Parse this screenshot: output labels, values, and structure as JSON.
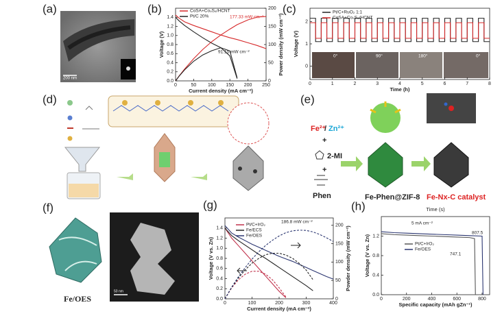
{
  "panel_labels": [
    "(a)",
    "(b)",
    "(c)",
    "(d)",
    "(e)",
    "(f)",
    "(g)",
    "(h)"
  ],
  "scale_bars": [
    "200 nm",
    "50 nm"
  ],
  "scheme_e": {
    "ion_fe": "Fe²⁺",
    "slash": "/",
    "ion_zn": "Zn²⁺",
    "plus": "+",
    "ligand1": "2-MI",
    "ligand2": "Phen",
    "product1": "Fe-Phen@ZIF-8",
    "product2": "Fe-Nx-C catalyst"
  },
  "f_caption": "Fe/OES",
  "chart_data": [
    {
      "type": "line",
      "xlabel": "Current density (mA cm⁻²)",
      "ylabel": "Voltage (V)",
      "y2label": "Power density (mW cm⁻²)",
      "x": [
        0,
        10,
        25,
        50,
        75,
        100,
        125,
        150,
        170,
        200,
        225,
        250
      ],
      "xlim": [
        0,
        250
      ],
      "xticks": [
        0,
        50,
        100,
        150,
        200,
        250
      ],
      "ylim": [
        0,
        1.6
      ],
      "yticks": [
        {
          "value": 0,
          "label": "0.0"
        },
        0.2,
        0.4,
        0.6,
        0.8,
        {
          "value": 1,
          "label": "1.0"
        },
        1.2,
        1.4
      ],
      "y2lim": [
        0,
        200
      ],
      "y2ticks": [
        0,
        50,
        100,
        150,
        200
      ],
      "series": [
        {
          "name": "CoSA+Co₉S₈/HCNT",
          "color": "#d62728",
          "values": [
            1.45,
            1.38,
            1.3,
            1.22,
            1.15,
            1.08,
            1.01,
            0.95,
            0.91,
            0.84,
            0.78,
            0.71
          ]
        },
        {
          "name": "Pt/C 20%",
          "color": "#222222",
          "values": [
            1.4,
            1.32,
            1.22,
            1.08,
            0.95,
            0.83,
            0.73,
            0.55,
            0.05,
            null,
            null,
            null
          ]
        },
        {
          "name": "CoSA+Co₉S₈/HCNT",
          "color": "#d62728",
          "axis": "y2",
          "values": [
            0,
            13.8,
            32.5,
            61,
            86.3,
            108,
            126.3,
            142.5,
            154.7,
            168,
            175.5,
            177.3
          ]
        },
        {
          "name": "Pt/C 20%",
          "color": "#222222",
          "axis": "y2",
          "values": [
            0,
            13.2,
            30.5,
            54,
            71.3,
            83,
            91.2,
            82.5,
            8.5,
            null,
            null,
            null
          ]
        }
      ],
      "annotations": [
        "177.33 mW cm⁻²",
        "91.15 mW cm⁻²"
      ]
    },
    {
      "type": "line",
      "xlabel": "Time (h)",
      "ylabel": "Voltage (V)",
      "x": [
        0,
        0.25,
        0.25,
        0.5,
        0.5,
        0.75,
        0.75,
        1,
        1,
        1.25,
        1.25,
        1.5,
        1.5,
        1.75,
        1.75,
        2,
        2,
        2.25,
        2.25,
        2.5,
        2.5,
        2.75,
        2.75,
        3,
        3,
        3.25,
        3.25,
        3.5,
        3.5,
        3.75,
        3.75,
        4,
        4,
        4.25,
        4.25,
        4.5,
        4.5,
        4.75,
        4.75,
        5,
        5,
        5.25,
        5.25,
        5.5,
        5.5,
        5.75,
        5.75,
        6,
        6,
        6.25,
        6.25,
        6.5,
        6.5,
        6.75,
        6.75,
        7,
        7,
        7.25,
        7.25,
        7.5,
        7.5,
        7.75,
        7.75,
        8
      ],
      "xlim": [
        0,
        8
      ],
      "xticks": [
        0,
        1,
        2,
        3,
        4,
        5,
        6,
        7,
        8
      ],
      "ylim": [
        -0.6,
        2.6
      ],
      "yticks": [
        0,
        1,
        2
      ],
      "series": [
        {
          "name": "Pt/C+RuO₂ 1:1",
          "color": "#222222",
          "values": [
            2.15,
            2.15,
            1.1,
            1.1,
            2.15,
            2.15,
            1.1,
            1.1,
            2.15,
            2.15,
            1.1,
            1.1,
            2.15,
            2.15,
            1.1,
            1.1,
            2.15,
            2.15,
            1.1,
            1.1,
            2.15,
            2.15,
            1.1,
            1.1,
            2.15,
            2.15,
            1.1,
            1.1,
            2.15,
            2.15,
            1.1,
            1.1,
            2.15,
            2.15,
            1.1,
            1.1,
            2.15,
            2.15,
            1.1,
            1.1,
            2.15,
            2.15,
            1.1,
            1.1,
            2.15,
            2.15,
            1.1,
            1.1,
            2.15,
            2.15,
            1.1,
            1.1,
            2.15,
            2.15,
            1.1,
            1.1,
            2.15,
            2.15,
            1.1,
            1.1,
            2.15,
            2.15,
            1.1,
            1.1
          ]
        },
        {
          "name": "CoSA+Co₉S₈/HCNT",
          "color": "#d62728",
          "values": [
            1.95,
            1.95,
            1.25,
            1.25,
            1.95,
            1.95,
            1.25,
            1.25,
            1.95,
            1.95,
            1.25,
            1.25,
            1.95,
            1.95,
            1.25,
            1.25,
            1.95,
            1.95,
            1.25,
            1.25,
            1.95,
            1.95,
            1.25,
            1.25,
            1.95,
            1.95,
            1.25,
            1.25,
            1.95,
            1.95,
            1.25,
            1.25,
            1.95,
            1.95,
            1.25,
            1.25,
            1.95,
            1.95,
            1.25,
            1.25,
            1.95,
            1.95,
            1.25,
            1.25,
            1.95,
            1.95,
            1.25,
            1.25,
            1.95,
            1.95,
            1.25,
            1.25,
            1.95,
            1.95,
            1.25,
            1.25,
            1.95,
            1.95,
            1.25,
            1.25,
            1.95,
            1.95,
            1.25,
            1.25
          ]
        }
      ],
      "annotations": [
        "0°",
        "90°",
        "180°",
        "0°"
      ]
    },
    {
      "type": "line",
      "xlabel": "Current density (mA cm⁻²)",
      "ylabel": "Voltage (V vs. Zn)",
      "y2label": "Powder density (mW cm⁻²)",
      "x": [
        0,
        25,
        50,
        75,
        100,
        125,
        150,
        175,
        200,
        225,
        250,
        275,
        300,
        325,
        350,
        375,
        400
      ],
      "xlim": [
        0,
        400
      ],
      "xticks": [
        0,
        100,
        200,
        300,
        400
      ],
      "ylim": [
        0,
        1.6
      ],
      "yticks": [
        {
          "value": 0,
          "label": "0.0"
        },
        0.2,
        0.4,
        0.6,
        0.8,
        {
          "value": 1,
          "label": "1.0"
        },
        1.2,
        1.4
      ],
      "y2lim": [
        0,
        220
      ],
      "y2ticks": [
        0,
        50,
        100,
        150,
        200
      ],
      "series": [
        {
          "name": "Pt/C+IrO₂",
          "color": "#c0304a",
          "values": [
            1.4,
            1.2,
            1.05,
            0.9,
            0.75,
            0.6,
            0.45,
            0.3,
            0.15,
            0.02,
            null,
            null,
            null,
            null,
            null,
            null,
            null
          ]
        },
        {
          "name": "Fe/ECS",
          "color": "#222222",
          "values": [
            1.4,
            1.25,
            1.15,
            1.06,
            0.97,
            0.88,
            0.8,
            0.71,
            0.62,
            0.53,
            0.44,
            0.35,
            0.26,
            0.16,
            null,
            null,
            null
          ]
        },
        {
          "name": "Fe/OES",
          "color": "#2a3570",
          "values": [
            1.45,
            1.3,
            1.22,
            1.15,
            1.08,
            1.02,
            0.96,
            0.9,
            0.84,
            0.79,
            0.74,
            0.68,
            0.62,
            0.56,
            0.5,
            0.44,
            0.39
          ]
        },
        {
          "name": "Pt/C+IrO₂",
          "color": "#c0304a",
          "axis": "y2",
          "dashed": true,
          "values": [
            0,
            30,
            52,
            67,
            75,
            75,
            67,
            52,
            30,
            5,
            null,
            null,
            null,
            null,
            null,
            null,
            null
          ]
        },
        {
          "name": "Fe/ECS",
          "color": "#222222",
          "axis": "y2",
          "dashed": true,
          "values": [
            0,
            31,
            57,
            79,
            97,
            110,
            120,
            124,
            124,
            119,
            110,
            96,
            78,
            52,
            null,
            null,
            null
          ]
        },
        {
          "name": "Fe/OES",
          "color": "#2a3570",
          "axis": "y2",
          "dashed": true,
          "values": [
            0,
            32,
            60,
            85,
            108,
            128,
            145,
            159,
            171,
            180,
            185,
            186.8,
            186,
            182,
            175,
            166,
            156
          ]
        }
      ],
      "annotations": [
        "186.8 mW cm⁻²"
      ]
    },
    {
      "type": "line",
      "xlabel": "Specific capacity (mAh gZn⁻¹)",
      "x2label": "Time (s)",
      "ylabel": "Voltage (V vs. Zn)",
      "xlim": [
        0,
        860
      ],
      "xticks": [
        0,
        200,
        400,
        600,
        800
      ],
      "ylim": [
        0,
        1.6
      ],
      "yticks": [
        {
          "value": 0,
          "label": "0.0"
        },
        0.4,
        0.8,
        1.2
      ],
      "series": [
        {
          "name": "Pt/C+IrO₂",
          "color": "#555555",
          "x": [
            0,
            100,
            200,
            300,
            400,
            500,
            600,
            700,
            740,
            747.1
          ],
          "values": [
            1.25,
            1.23,
            1.22,
            1.21,
            1.2,
            1.19,
            1.18,
            1.17,
            1.15,
            0
          ]
        },
        {
          "name": "Fe/OES",
          "color": "#2a3570",
          "x": [
            0,
            100,
            200,
            300,
            400,
            500,
            600,
            700,
            800,
            807.5
          ],
          "values": [
            1.29,
            1.27,
            1.26,
            1.25,
            1.24,
            1.23,
            1.22,
            1.21,
            1.2,
            0
          ]
        }
      ],
      "annotations": [
        "5 mA cm⁻²",
        "807.5",
        "747.1"
      ]
    }
  ]
}
